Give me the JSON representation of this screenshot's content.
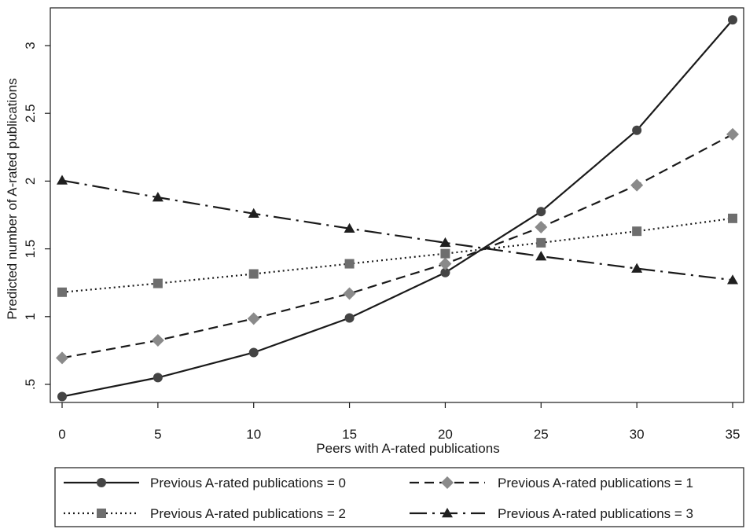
{
  "chart_data": {
    "type": "line",
    "xlabel": "Peers with A-rated publications",
    "ylabel": "Predicted number of A-rated publications",
    "xlim": [
      0,
      35
    ],
    "ylim": [
      0.45,
      3.3
    ],
    "x_ticks": [
      0,
      5,
      10,
      15,
      20,
      25,
      30,
      35
    ],
    "x_tick_labels": [
      "0",
      "5",
      "10",
      "15",
      "20",
      "25",
      "30",
      "35"
    ],
    "y_ticks": [
      0.5,
      1,
      1.5,
      2,
      2.5,
      3
    ],
    "y_tick_labels": [
      ".5",
      "1",
      "1.5",
      "2",
      "2.5",
      "3"
    ],
    "grid": false,
    "legend_position": "bottom",
    "x": [
      0,
      5,
      10,
      15,
      20,
      25,
      30,
      35
    ],
    "series": [
      {
        "name": "Previous A-rated publications = 0",
        "values": [
          0.41,
          0.55,
          0.735,
          0.99,
          1.325,
          1.775,
          2.375,
          3.19
        ],
        "color": "#444444",
        "line_style": "solid",
        "marker": "circle"
      },
      {
        "name": "Previous A-rated publications = 1",
        "values": [
          0.695,
          0.825,
          0.985,
          1.17,
          1.39,
          1.66,
          1.97,
          2.345
        ],
        "color": "#8a8a8a",
        "line_style": "dashed",
        "marker": "diamond"
      },
      {
        "name": "Previous A-rated publications = 2",
        "values": [
          1.18,
          1.245,
          1.315,
          1.39,
          1.465,
          1.545,
          1.63,
          1.725
        ],
        "color": "#6e6e6e",
        "line_style": "dotted",
        "marker": "square"
      },
      {
        "name": "Previous A-rated publications = 3",
        "values": [
          2.005,
          1.88,
          1.76,
          1.65,
          1.545,
          1.445,
          1.355,
          1.27
        ],
        "color": "#1f1f1f",
        "line_style": "dashdot",
        "marker": "triangle"
      }
    ]
  }
}
